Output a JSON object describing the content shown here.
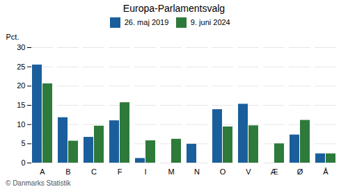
{
  "chart_data": {
    "type": "bar",
    "title": "Europa-Parlamentsvalg",
    "categories": [
      "A",
      "B",
      "C",
      "F",
      "I",
      "M",
      "N",
      "O",
      "V",
      "Æ",
      "Ø",
      "Å"
    ],
    "series": [
      {
        "name": "26. maj 2019",
        "color": "#1a5f9c",
        "values": [
          25.5,
          11.8,
          6.7,
          11.0,
          1.2,
          0.0,
          4.9,
          13.9,
          15.3,
          0.0,
          7.3,
          2.4
        ]
      },
      {
        "name": "9. juni 2024",
        "color": "#2d7a3a",
        "values": [
          20.6,
          5.7,
          9.6,
          15.7,
          5.8,
          6.2,
          0.0,
          9.4,
          9.7,
          5.0,
          11.1,
          2.4
        ]
      }
    ],
    "ylabel": "Pct.",
    "ylim": [
      0,
      30
    ],
    "yticks": [
      0,
      5,
      10,
      15,
      20,
      25,
      30
    ],
    "grid": true,
    "legend": "top",
    "footer": "© Danmarks Statistik"
  }
}
